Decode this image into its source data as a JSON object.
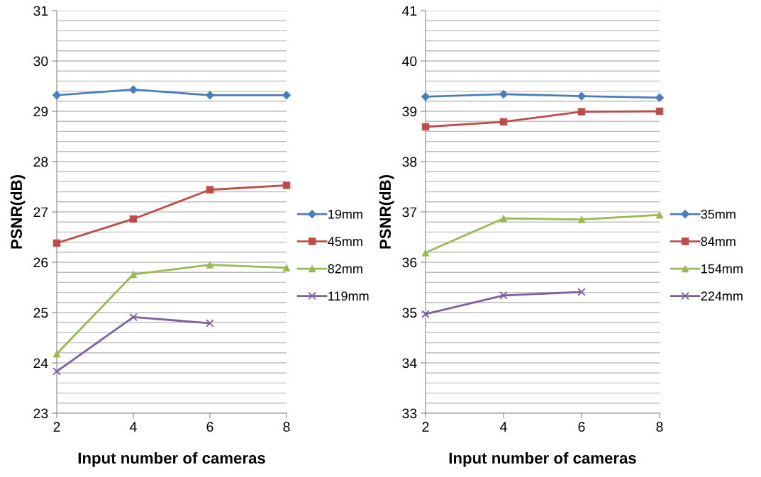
{
  "chart_data": [
    {
      "type": "line",
      "xlabel": "Input number of cameras",
      "ylabel": "PSNR(dB)",
      "x": [
        2,
        4,
        6,
        8
      ],
      "xlim": [
        2,
        8
      ],
      "xticks": [
        2,
        4,
        6,
        8
      ],
      "ylim": [
        23,
        31
      ],
      "yticks": [
        23,
        {
          "value": 23.2,
          "label": null
        },
        {
          "value": 23.4,
          "label": null
        },
        {
          "value": 23.6,
          "label": null
        },
        {
          "value": 23.8,
          "label": null
        },
        24,
        {
          "value": 24.2,
          "label": null
        },
        {
          "value": 24.4,
          "label": null
        },
        {
          "value": 24.6,
          "label": null
        },
        {
          "value": 24.8,
          "label": null
        },
        25,
        {
          "value": 25.2,
          "label": null
        },
        {
          "value": 25.4,
          "label": null
        },
        {
          "value": 25.6,
          "label": null
        },
        {
          "value": 25.8,
          "label": null
        },
        26,
        {
          "value": 26.2,
          "label": null
        },
        {
          "value": 26.4,
          "label": null
        },
        {
          "value": 26.6,
          "label": null
        },
        {
          "value": 26.8,
          "label": null
        },
        27,
        {
          "value": 27.2,
          "label": null
        },
        {
          "value": 27.4,
          "label": null
        },
        {
          "value": 27.6,
          "label": null
        },
        {
          "value": 27.8,
          "label": null
        },
        28,
        {
          "value": 28.2,
          "label": null
        },
        {
          "value": 28.4,
          "label": null
        },
        {
          "value": 28.6,
          "label": null
        },
        {
          "value": 28.8,
          "label": null
        },
        29,
        {
          "value": 29.2,
          "label": null
        },
        {
          "value": 29.4,
          "label": null
        },
        {
          "value": 29.6,
          "label": null
        },
        {
          "value": 29.8,
          "label": null
        },
        30,
        {
          "value": 30.2,
          "label": null
        },
        {
          "value": 30.4,
          "label": null
        },
        {
          "value": 30.6,
          "label": null
        },
        {
          "value": 30.8,
          "label": null
        },
        31
      ],
      "grid": "y",
      "legend": "right",
      "series": [
        {
          "name": "19mm",
          "color": "#4a7ebb",
          "marker": "diamond",
          "values": [
            29.32,
            29.43,
            29.32,
            29.32
          ]
        },
        {
          "name": "45mm",
          "color": "#be4b48",
          "marker": "square",
          "values": [
            26.38,
            26.86,
            27.44,
            27.53
          ]
        },
        {
          "name": "82mm",
          "color": "#98b954",
          "marker": "triangle",
          "values": [
            24.18,
            25.76,
            25.95,
            25.89
          ]
        },
        {
          "name": "119mm",
          "color": "#7d60a0",
          "marker": "cross",
          "values": [
            23.83,
            24.91,
            24.79,
            null
          ]
        }
      ]
    },
    {
      "type": "line",
      "xlabel": "Input number of cameras",
      "ylabel": "PSNR(dB)",
      "x": [
        2,
        4,
        6,
        8
      ],
      "xlim": [
        2,
        8
      ],
      "xticks": [
        2,
        4,
        6,
        8
      ],
      "ylim": [
        33,
        41
      ],
      "yticks": [
        33,
        {
          "value": 33.2,
          "label": null
        },
        {
          "value": 33.4,
          "label": null
        },
        {
          "value": 33.6,
          "label": null
        },
        {
          "value": 33.8,
          "label": null
        },
        34,
        {
          "value": 34.2,
          "label": null
        },
        {
          "value": 34.4,
          "label": null
        },
        {
          "value": 34.6,
          "label": null
        },
        {
          "value": 34.8,
          "label": null
        },
        35,
        {
          "value": 35.2,
          "label": null
        },
        {
          "value": 35.4,
          "label": null
        },
        {
          "value": 35.6,
          "label": null
        },
        {
          "value": 35.8,
          "label": null
        },
        36,
        {
          "value": 36.2,
          "label": null
        },
        {
          "value": 36.4,
          "label": null
        },
        {
          "value": 36.6,
          "label": null
        },
        {
          "value": 36.8,
          "label": null
        },
        37,
        {
          "value": 37.2,
          "label": null
        },
        {
          "value": 37.4,
          "label": null
        },
        {
          "value": 37.6,
          "label": null
        },
        {
          "value": 37.8,
          "label": null
        },
        38,
        {
          "value": 38.2,
          "label": null
        },
        {
          "value": 38.4,
          "label": null
        },
        {
          "value": 38.6,
          "label": null
        },
        {
          "value": 38.8,
          "label": null
        },
        39,
        {
          "value": 39.2,
          "label": null
        },
        {
          "value": 39.4,
          "label": null
        },
        {
          "value": 39.6,
          "label": null
        },
        {
          "value": 39.8,
          "label": null
        },
        40,
        {
          "value": 40.2,
          "label": null
        },
        {
          "value": 40.4,
          "label": null
        },
        {
          "value": 40.6,
          "label": null
        },
        {
          "value": 40.8,
          "label": null
        },
        41
      ],
      "grid": "y",
      "legend": "right",
      "series": [
        {
          "name": "35mm",
          "color": "#4a7ebb",
          "marker": "diamond",
          "values": [
            39.29,
            39.34,
            39.3,
            39.27
          ]
        },
        {
          "name": "84mm",
          "color": "#be4b48",
          "marker": "square",
          "values": [
            38.69,
            38.79,
            38.99,
            39.0
          ]
        },
        {
          "name": "154mm",
          "color": "#98b954",
          "marker": "triangle",
          "values": [
            36.19,
            36.87,
            36.85,
            36.94
          ]
        },
        {
          "name": "224mm",
          "color": "#7d60a0",
          "marker": "cross",
          "values": [
            34.97,
            35.34,
            35.41,
            null
          ]
        }
      ]
    }
  ]
}
